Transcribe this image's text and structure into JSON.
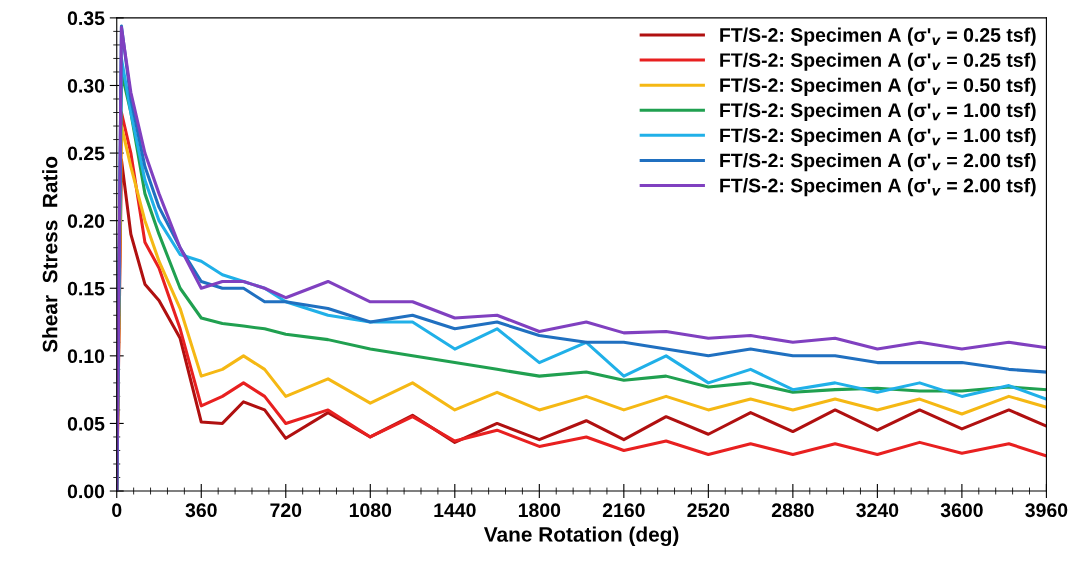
{
  "chart_data": {
    "type": "line",
    "xlabel": "Vane Rotation (deg)",
    "ylabel": "Shear  Stress  Ratio",
    "x": [
      0,
      20,
      60,
      120,
      180,
      270,
      360,
      450,
      540,
      630,
      720,
      900,
      1080,
      1260,
      1440,
      1620,
      1800,
      2000,
      2160,
      2340,
      2520,
      2700,
      2880,
      3060,
      3240,
      3420,
      3600,
      3800,
      3960
    ],
    "series": [
      {
        "name": "FT/S-2: Specimen A (σ'$_{v}$ = 0.25 tsf)",
        "color": "#b01010",
        "values": [
          0,
          0.245,
          0.19,
          0.153,
          0.141,
          0.113,
          0.051,
          0.05,
          0.066,
          0.06,
          0.039,
          0.058,
          0.04,
          0.056,
          0.036,
          0.05,
          0.038,
          0.052,
          0.038,
          0.055,
          0.042,
          0.058,
          0.044,
          0.06,
          0.045,
          0.06,
          0.046,
          0.06,
          0.048
        ]
      },
      {
        "name": "FT/S-2: Specimen A (σ'$_{v}$ = 0.25 tsf)",
        "color": "#e82020",
        "values": [
          0,
          0.28,
          0.25,
          0.184,
          0.165,
          0.12,
          0.063,
          0.07,
          0.08,
          0.07,
          0.05,
          0.06,
          0.04,
          0.055,
          0.037,
          0.045,
          0.033,
          0.04,
          0.03,
          0.037,
          0.027,
          0.035,
          0.027,
          0.035,
          0.027,
          0.036,
          0.028,
          0.035,
          0.026
        ]
      },
      {
        "name": "FT/S-2: Specimen A (σ'$_{v}$ = 0.50 tsf)",
        "color": "#f5b814",
        "values": [
          0,
          0.27,
          0.24,
          0.2,
          0.17,
          0.135,
          0.085,
          0.09,
          0.1,
          0.09,
          0.07,
          0.083,
          0.065,
          0.08,
          0.06,
          0.073,
          0.06,
          0.07,
          0.06,
          0.07,
          0.06,
          0.068,
          0.06,
          0.068,
          0.06,
          0.068,
          0.057,
          0.07,
          0.062
        ]
      },
      {
        "name": "FT/S-2: Specimen A (σ'$_{v}$ = 1.00 tsf)",
        "color": "#20a050",
        "values": [
          0,
          0.31,
          0.28,
          0.22,
          0.19,
          0.15,
          0.128,
          0.124,
          0.122,
          0.12,
          0.116,
          0.112,
          0.105,
          0.1,
          0.095,
          0.09,
          0.085,
          0.088,
          0.082,
          0.085,
          0.077,
          0.08,
          0.073,
          0.075,
          0.076,
          0.074,
          0.074,
          0.077,
          0.075
        ]
      },
      {
        "name": "FT/S-2: Specimen A (σ'$_{v}$ = 1.00 tsf)",
        "color": "#20b0e8",
        "values": [
          0,
          0.32,
          0.28,
          0.23,
          0.2,
          0.175,
          0.17,
          0.16,
          0.155,
          0.15,
          0.14,
          0.13,
          0.125,
          0.125,
          0.105,
          0.12,
          0.095,
          0.11,
          0.085,
          0.1,
          0.08,
          0.09,
          0.075,
          0.08,
          0.073,
          0.08,
          0.07,
          0.078,
          0.068
        ]
      },
      {
        "name": "FT/S-2: Specimen A (σ'$_{v}$ = 2.00 tsf)",
        "color": "#2070c0",
        "values": [
          0,
          0.344,
          0.29,
          0.24,
          0.21,
          0.18,
          0.155,
          0.15,
          0.15,
          0.14,
          0.14,
          0.135,
          0.125,
          0.13,
          0.12,
          0.125,
          0.115,
          0.11,
          0.11,
          0.105,
          0.1,
          0.105,
          0.1,
          0.1,
          0.095,
          0.095,
          0.095,
          0.09,
          0.088
        ]
      },
      {
        "name": "FT/S-2: Specimen A (σ'$_{v}$ = 2.00 tsf)",
        "color": "#8040c0",
        "values": [
          0,
          0.343,
          0.295,
          0.25,
          0.22,
          0.18,
          0.15,
          0.155,
          0.155,
          0.15,
          0.143,
          0.155,
          0.14,
          0.14,
          0.128,
          0.13,
          0.118,
          0.125,
          0.117,
          0.118,
          0.113,
          0.115,
          0.11,
          0.113,
          0.105,
          0.11,
          0.105,
          0.11,
          0.106
        ]
      }
    ],
    "xlim": [
      0,
      3960
    ],
    "xticks": [
      0,
      360,
      720,
      1080,
      1440,
      1800,
      2160,
      2520,
      2880,
      3240,
      3600,
      3960
    ],
    "ylim": [
      0,
      0.35
    ],
    "yticks": [
      {
        "value": 0,
        "label": "0.00"
      },
      {
        "value": 0.05,
        "label": "0.05"
      },
      {
        "value": 0.1,
        "label": "0.10"
      },
      {
        "value": 0.15,
        "label": "0.15"
      },
      {
        "value": 0.2,
        "label": "0.20"
      },
      {
        "value": 0.25,
        "label": "0.25"
      },
      {
        "value": 0.3,
        "label": "0.30"
      },
      {
        "value": 0.35,
        "label": "0.35"
      }
    ],
    "legend": "top right",
    "grid": false
  }
}
